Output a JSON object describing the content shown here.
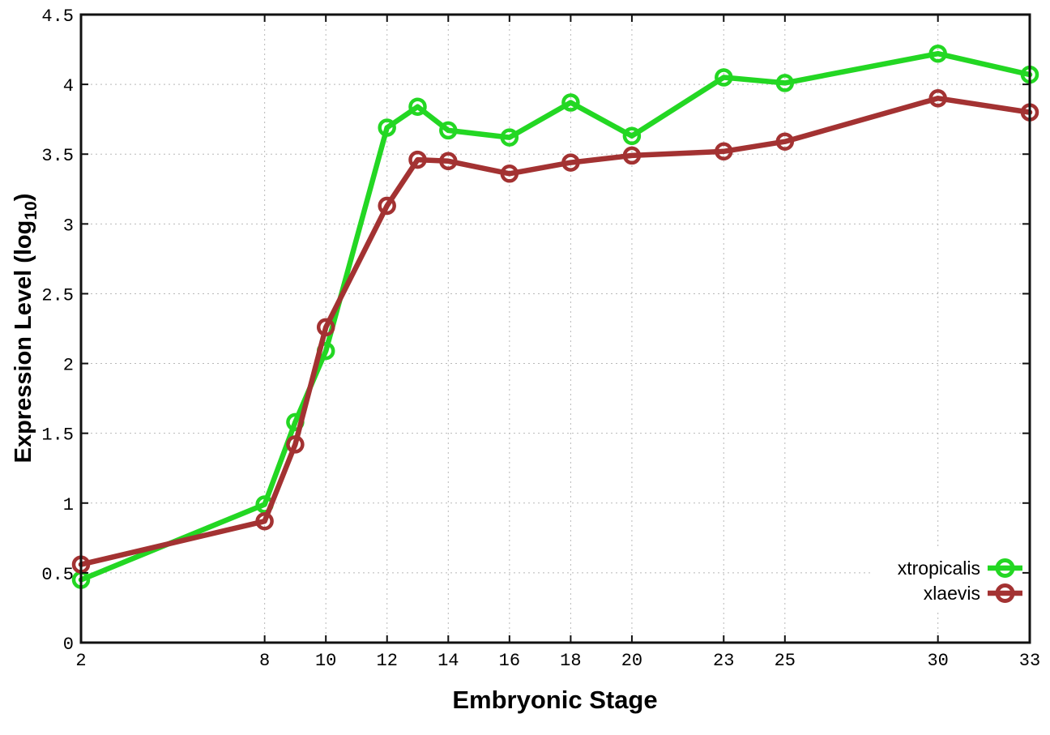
{
  "chart_data": {
    "type": "line",
    "title": "",
    "xlabel": "Embryonic Stage",
    "ylabel": "Expression Level (log10)",
    "ylabel_base": "Expression Level (log",
    "ylabel_sub": "10",
    "ylabel_close": ")",
    "x": [
      2,
      8,
      9,
      10,
      12,
      13,
      14,
      16,
      18,
      20,
      23,
      25,
      30,
      33
    ],
    "x_tick_values": [
      2,
      8,
      10,
      12,
      14,
      16,
      18,
      20,
      23,
      25,
      30,
      33
    ],
    "x_tick_labels": [
      "2",
      "8",
      "10",
      "12",
      "14",
      "16",
      "18",
      "20",
      "23",
      "25",
      "30",
      "33"
    ],
    "y_tick_values": [
      0,
      0.5,
      1,
      1.5,
      2,
      2.5,
      3,
      3.5,
      4,
      4.5
    ],
    "y_tick_labels": [
      "0",
      "0.5",
      "1",
      "1.5",
      "2",
      "2.5",
      "3",
      "3.5",
      "4",
      "4.5"
    ],
    "xlim": [
      2,
      33
    ],
    "ylim": [
      0,
      4.5
    ],
    "grid": true,
    "legend_position": "bottom-right",
    "marker": "open-circle",
    "series": [
      {
        "name": "xtropicalis",
        "color": "#23d723",
        "values": [
          0.45,
          0.99,
          1.58,
          2.09,
          3.69,
          3.84,
          3.67,
          3.62,
          3.87,
          3.63,
          4.05,
          4.01,
          4.22,
          4.07
        ]
      },
      {
        "name": "xlaevis",
        "color": "#a33232",
        "values": [
          0.56,
          0.87,
          1.42,
          2.26,
          3.13,
          3.46,
          3.45,
          3.36,
          3.44,
          3.49,
          3.52,
          3.59,
          3.9,
          3.8
        ]
      }
    ]
  },
  "style": {
    "grid_color": "#b8b8b8",
    "border_color": "#111111",
    "background": "#ffffff",
    "text_color": "#000000"
  }
}
